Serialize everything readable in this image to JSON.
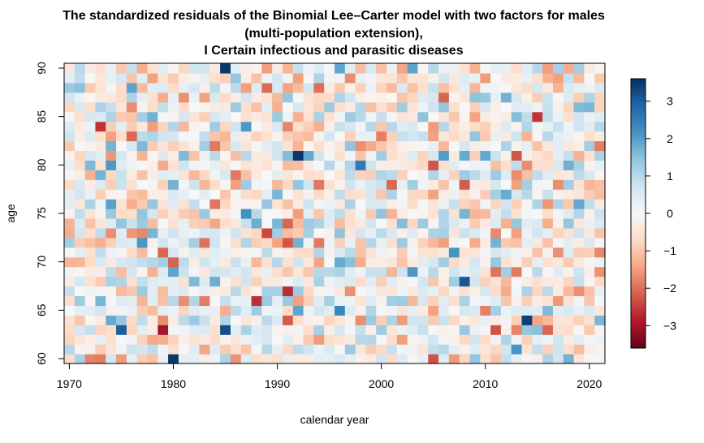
{
  "chart_data": {
    "type": "heatmap",
    "title": [
      "The standardized residuals of the Binomial Lee–Carter model with two factors for males",
      "(multi-population extension),",
      "I Certain infectious and parasitic diseases"
    ],
    "xlabel": "calendar year",
    "ylabel": "age",
    "x_range": [
      1970,
      2021
    ],
    "y_range": [
      60,
      90
    ],
    "x_ticks": [
      1970,
      1980,
      1990,
      2000,
      2010,
      2020
    ],
    "y_ticks": [
      60,
      65,
      70,
      75,
      80,
      85,
      90
    ],
    "color_scale": {
      "min": -3.6,
      "max": 3.6,
      "ticks": [
        3,
        2,
        1,
        0,
        -1,
        -2,
        -3
      ],
      "tick_labels": [
        "3",
        "2",
        "1",
        "0",
        "−1",
        "−2",
        "−3"
      ],
      "palette": [
        "#67001f",
        "#b2182b",
        "#d6604d",
        "#f4a582",
        "#fddbc7",
        "#f7f7f7",
        "#d1e5f0",
        "#92c5de",
        "#4393c3",
        "#2166ac",
        "#053061"
      ]
    },
    "notable_cells": [
      {
        "year": 1980,
        "age": 60,
        "value": 3.5
      },
      {
        "year": 1985,
        "age": 90,
        "value": 3.5
      },
      {
        "year": 1992,
        "age": 81,
        "value": 3.5
      },
      {
        "year": 1991,
        "age": 67,
        "value": -2.7
      },
      {
        "year": 2014,
        "age": 64,
        "value": 3.4
      },
      {
        "year": 2008,
        "age": 68,
        "value": 3.1
      },
      {
        "year": 1979,
        "age": 63,
        "value": -3.0
      },
      {
        "year": 1973,
        "age": 84,
        "value": -2.6
      },
      {
        "year": 2015,
        "age": 85,
        "value": -2.6
      },
      {
        "year": 1989,
        "age": 73,
        "value": -2.4
      },
      {
        "year": 1985,
        "age": 63,
        "value": 3.2
      },
      {
        "year": 1975,
        "age": 63,
        "value": 3.0
      },
      {
        "year": 2005,
        "age": 60,
        "value": -2.3
      }
    ]
  }
}
